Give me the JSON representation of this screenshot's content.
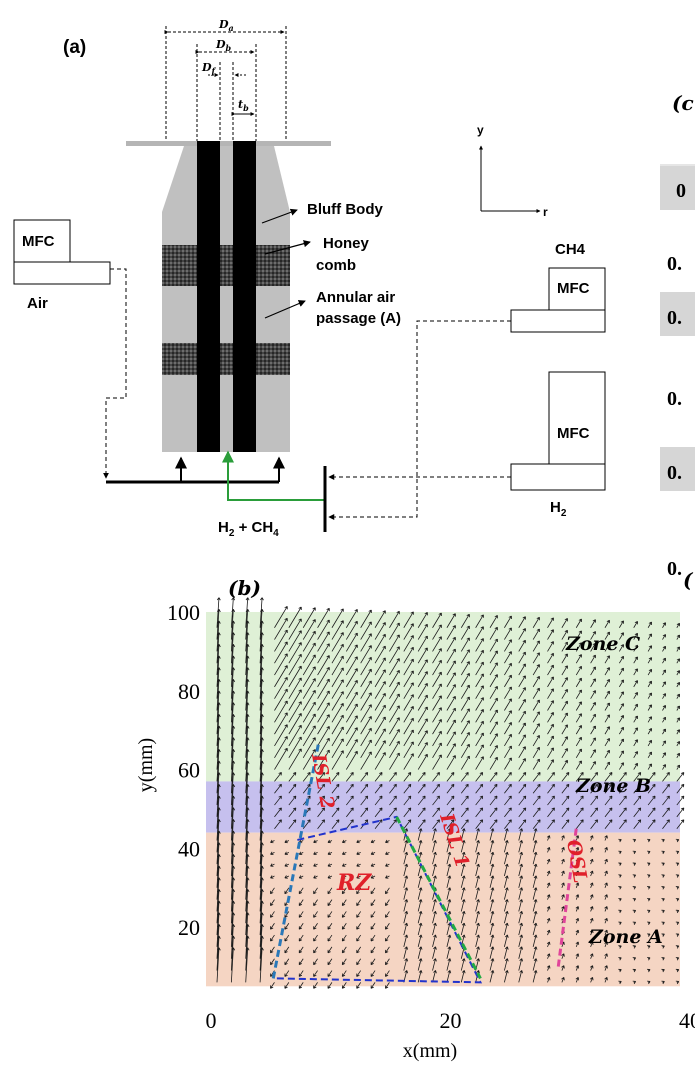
{
  "panel_a": {
    "label": "(a)",
    "dim_labels": {
      "Da": "D",
      "Da_sub": "a",
      "Db": "D",
      "Db_sub": "b",
      "Df": "D",
      "Df_sub": "f",
      "tb": "t",
      "tb_sub": "b"
    },
    "axes": {
      "y": "y",
      "r": "r"
    },
    "callouts": {
      "bluff_body": "Bluff Body",
      "honey_line1": "Honey",
      "honey_line2": "comb",
      "annular_line1": "Annular air",
      "annular_line2": "passage (A)"
    },
    "air": {
      "mfc": "MFC",
      "label": "Air"
    },
    "ch4": {
      "label": "CH4",
      "mfc": "MFC"
    },
    "h2": {
      "mfc": "MFC",
      "label": "H",
      "label_sub": "2"
    },
    "mix": {
      "h": "H",
      "h_sub": "2",
      "plus": " + CH",
      "ch_sub": "4"
    }
  },
  "panel_right_fragments": {
    "label": "(c",
    "row_texts": [
      "0",
      "0.",
      "0.",
      "0.",
      "0.",
      "0."
    ],
    "bottom_label": "("
  },
  "panel_b": {
    "label": "(b)",
    "xlabel": "x(mm)",
    "ylabel": "y(mm)",
    "zones": {
      "a": "Zone A",
      "b": "Zone B",
      "c": "Zone C"
    },
    "annotations": {
      "rz": "RZ",
      "isl1": "ISL 1",
      "isl2": "ISL 2",
      "osl": "OSL"
    },
    "colors": {
      "zone_a": "#f5d5c3",
      "zone_b": "#c6c0ee",
      "zone_c": "#dff0d6",
      "isl1": "#22aa44",
      "isl2": "#2a78b8",
      "osl": "#e0449a",
      "rz_box": "#2233cc",
      "text_red": "#e0202a"
    },
    "chart_data": {
      "type": "quiver",
      "xlim": [
        0,
        40
      ],
      "ylim": [
        5,
        100
      ],
      "xticks": [
        0,
        20,
        40
      ],
      "yticks": [
        20,
        40,
        60,
        80,
        100
      ],
      "zones_y": {
        "zone_a": [
          5,
          44
        ],
        "zone_b": [
          44,
          57
        ],
        "zone_c": [
          57,
          100
        ]
      },
      "isl2_line": [
        [
          5.2,
          7
        ],
        [
          9,
          67
        ]
      ],
      "isl1_line": [
        [
          15.5,
          48
        ],
        [
          22.5,
          7
        ]
      ],
      "osl_line": [
        [
          30.5,
          45
        ],
        [
          29,
          10
        ]
      ],
      "rz_box": [
        [
          5.5,
          7
        ],
        [
          22.5,
          6
        ],
        [
          15.5,
          48
        ],
        [
          7,
          42
        ]
      ]
    }
  }
}
